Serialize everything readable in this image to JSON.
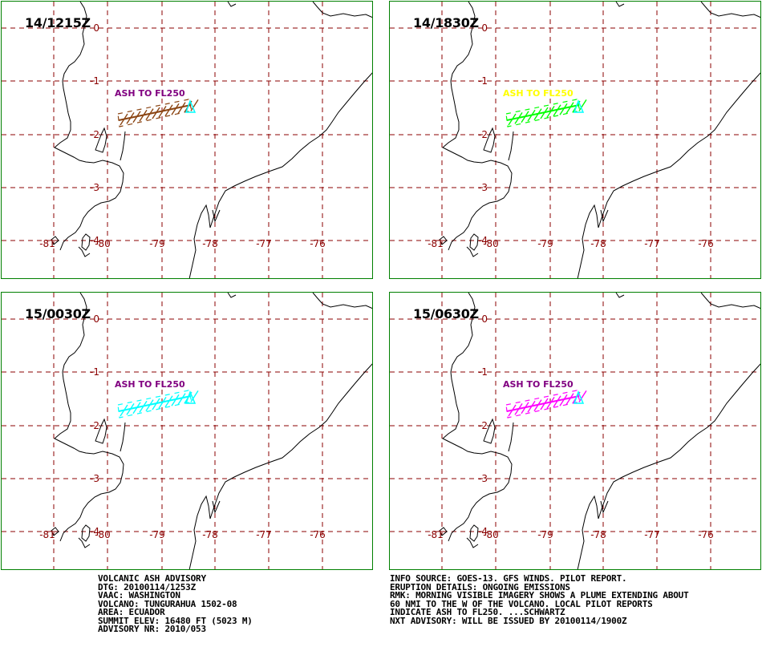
{
  "panels": [
    {
      "time": "14/1215Z",
      "ash_label": "ASH TO FL250",
      "plume_color": "#8b4513",
      "hatch_color": "#8b4513",
      "label_color": "#800080",
      "volcano_color": "#00ffff"
    },
    {
      "time": "14/1830Z",
      "ash_label": "ASH TO FL250",
      "plume_color": "#00ff00",
      "hatch_color": "#00ff00",
      "label_color": "#ffff00",
      "volcano_color": "#00ffff"
    },
    {
      "time": "15/0030Z",
      "ash_label": "ASH TO FL250",
      "plume_color": "#00ffff",
      "hatch_color": "#00ffff",
      "label_color": "#800080",
      "volcano_color": "#00ffff"
    },
    {
      "time": "15/0630Z",
      "ash_label": "ASH TO FL250",
      "plume_color": "#ff00ff",
      "hatch_color": "#ff00ff",
      "label_color": "#800080",
      "volcano_color": "#00ffff"
    }
  ],
  "map": {
    "lat_labels": [
      "0",
      "-1",
      "-2",
      "-3",
      "-4"
    ],
    "lon_labels": [
      "-81",
      "-80",
      "-79",
      "-78",
      "-77",
      "-76"
    ],
    "colors": {
      "grid": "#8b0000",
      "frame": "#008000",
      "coast": "#000000"
    }
  },
  "advisory_left": [
    "VOLCANIC ASH ADVISORY",
    "DTG: 20100114/1253Z",
    "VAAC: WASHINGTON",
    "VOLCANO: TUNGURAHUA 1502-08",
    "AREA: ECUADOR",
    "SUMMIT ELEV: 16480 FT (5023 M)",
    "ADVISORY NR: 2010/053"
  ],
  "advisory_right": [
    "INFO SOURCE: GOES-13. GFS WINDS. PILOT REPORT.",
    "ERUPTION DETAILS: ONGOING EMISSIONS",
    "RMK: MORNING VISIBLE IMAGERY SHOWS A PLUME EXTENDING ABOUT",
    "60 NMI TO THE W OF THE VOLCANO. LOCAL PILOT REPORTS",
    "INDICATE ASH TO FL250. ...SCHWARTZ",
    "NXT ADVISORY: WILL BE ISSUED BY 20100114/1900Z"
  ]
}
